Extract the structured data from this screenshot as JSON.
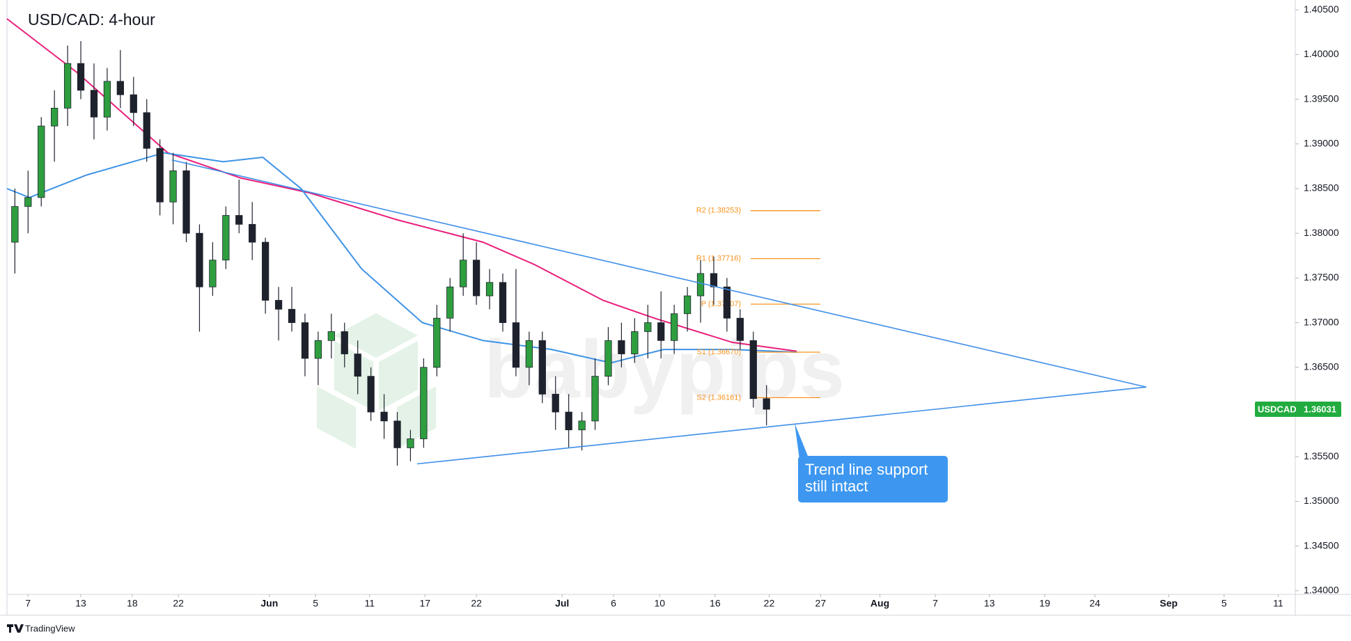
{
  "chart_data": {
    "type": "candlestick",
    "title": "USD/CAD: 4-hour",
    "x": [
      -1,
      0,
      1,
      2,
      3,
      4,
      5,
      6,
      7,
      8,
      9,
      10,
      11,
      12,
      13,
      14,
      15,
      16,
      17,
      18,
      19,
      20,
      21,
      22,
      23,
      24,
      25,
      26,
      27,
      28,
      29,
      30,
      31,
      32,
      33,
      34,
      35,
      36,
      37,
      38,
      39,
      40,
      41,
      42,
      43,
      44,
      45,
      46,
      47,
      48,
      49,
      50,
      51,
      52,
      53,
      54,
      55,
      56
    ],
    "open": [
      1.379,
      1.383,
      1.384,
      1.392,
      1.394,
      1.399,
      1.396,
      1.393,
      1.397,
      1.3955,
      1.3935,
      1.3895,
      1.3835,
      1.387,
      1.38,
      1.374,
      1.377,
      1.382,
      1.381,
      1.379,
      1.3725,
      1.3715,
      1.37,
      1.366,
      1.368,
      1.369,
      1.3665,
      1.364,
      1.36,
      1.359,
      1.356,
      1.357,
      1.365,
      1.3705,
      1.374,
      1.377,
      1.373,
      1.3745,
      1.37,
      1.365,
      1.368,
      1.362,
      1.36,
      1.358,
      1.359,
      1.364,
      1.368,
      1.3665,
      1.369,
      1.37,
      1.368,
      1.371,
      1.373,
      1.3755,
      1.374,
      1.3705,
      1.368,
      1.3615
    ],
    "high": [
      1.385,
      1.387,
      1.393,
      1.396,
      1.401,
      1.4015,
      1.399,
      1.3985,
      1.4005,
      1.3975,
      1.395,
      1.3905,
      1.389,
      1.388,
      1.381,
      1.379,
      1.383,
      1.386,
      1.3835,
      1.3795,
      1.374,
      1.374,
      1.371,
      1.369,
      1.371,
      1.37,
      1.368,
      1.365,
      1.362,
      1.36,
      1.358,
      1.366,
      1.372,
      1.375,
      1.38,
      1.379,
      1.376,
      1.3755,
      1.376,
      1.369,
      1.369,
      1.364,
      1.362,
      1.36,
      1.366,
      1.3695,
      1.37,
      1.3705,
      1.372,
      1.3735,
      1.372,
      1.374,
      1.377,
      1.3774,
      1.375,
      1.3715,
      1.369,
      1.363
    ],
    "low": [
      1.3755,
      1.38,
      1.383,
      1.388,
      1.392,
      1.395,
      1.3905,
      1.3915,
      1.394,
      1.392,
      1.388,
      1.382,
      1.381,
      1.379,
      1.369,
      1.373,
      1.376,
      1.38,
      1.377,
      1.371,
      1.368,
      1.369,
      1.364,
      1.363,
      1.366,
      1.365,
      1.362,
      1.359,
      1.357,
      1.354,
      1.3545,
      1.356,
      1.364,
      1.369,
      1.373,
      1.372,
      1.3715,
      1.369,
      1.364,
      1.363,
      1.361,
      1.358,
      1.356,
      1.3557,
      1.358,
      1.363,
      1.365,
      1.3655,
      1.366,
      1.366,
      1.3665,
      1.369,
      1.37,
      1.372,
      1.369,
      1.367,
      1.3605,
      1.3585
    ],
    "close": [
      1.383,
      1.384,
      1.392,
      1.394,
      1.399,
      1.396,
      1.393,
      1.397,
      1.3955,
      1.3935,
      1.3895,
      1.3835,
      1.387,
      1.38,
      1.374,
      1.377,
      1.382,
      1.381,
      1.379,
      1.3725,
      1.3715,
      1.37,
      1.366,
      1.368,
      1.369,
      1.3665,
      1.364,
      1.36,
      1.359,
      1.356,
      1.357,
      1.365,
      1.3705,
      1.374,
      1.377,
      1.373,
      1.3745,
      1.37,
      1.365,
      1.368,
      1.362,
      1.36,
      1.358,
      1.359,
      1.364,
      1.368,
      1.3665,
      1.369,
      1.37,
      1.368,
      1.371,
      1.373,
      1.3755,
      1.374,
      1.3705,
      1.368,
      1.3615,
      1.36031
    ],
    "up_color": "#2e9e3f",
    "down_color": "#1e222d",
    "xlim": [
      -1.6,
      96.1
    ],
    "xticks": [
      {
        "value": 0,
        "label": "7"
      },
      {
        "value": 4,
        "label": "13"
      },
      {
        "value": 7.9,
        "label": "18"
      },
      {
        "value": 11.4,
        "label": "22"
      },
      {
        "value": 18.3,
        "label": "Jun"
      },
      {
        "value": 21.8,
        "label": "5"
      },
      {
        "value": 25.9,
        "label": "11"
      },
      {
        "value": 30.1,
        "label": "17"
      },
      {
        "value": 34,
        "label": "22"
      },
      {
        "value": 40.5,
        "label": "Jul"
      },
      {
        "value": 44.4,
        "label": "6"
      },
      {
        "value": 47.9,
        "label": "10"
      },
      {
        "value": 52.1,
        "label": "16"
      },
      {
        "value": 56.2,
        "label": "22"
      },
      {
        "value": 60.1,
        "label": "27"
      },
      {
        "value": 64.6,
        "label": "Aug"
      },
      {
        "value": 68.8,
        "label": "7"
      },
      {
        "value": 72.9,
        "label": "13"
      },
      {
        "value": 77.1,
        "label": "19"
      },
      {
        "value": 80.9,
        "label": "24"
      },
      {
        "value": 86.5,
        "label": "Sep"
      },
      {
        "value": 90.7,
        "label": "5"
      },
      {
        "value": 94.8,
        "label": "11"
      }
    ],
    "ylim": [
      1.3396,
      1.4061
    ],
    "yticks": [
      {
        "value": 1.34,
        "label": "1.34000"
      },
      {
        "value": 1.345,
        "label": "1.34500"
      },
      {
        "value": 1.35,
        "label": "1.35000"
      },
      {
        "value": 1.355,
        "label": "1.35500"
      },
      {
        "value": 1.36,
        "label": "1.36000"
      },
      {
        "value": 1.365,
        "label": "1.36500"
      },
      {
        "value": 1.37,
        "label": "1.37000"
      },
      {
        "value": 1.375,
        "label": "1.37500"
      },
      {
        "value": 1.38,
        "label": "1.38000"
      },
      {
        "value": 1.385,
        "label": "1.38500"
      },
      {
        "value": 1.39,
        "label": "1.39000"
      },
      {
        "value": 1.395,
        "label": "1.39500"
      },
      {
        "value": 1.4,
        "label": "1.40000"
      },
      {
        "value": 1.405,
        "label": "1.40500"
      }
    ],
    "moving_averages": [
      {
        "color": "#e91e7a",
        "x": [
          -1.6,
          3.7,
          10.6,
          16.1,
          21.4,
          28,
          34.5,
          38.4,
          43.6,
          47.5,
          53.4,
          58.3
        ],
        "values": [
          1.404,
          1.398,
          1.389,
          1.3862,
          1.3845,
          1.3815,
          1.379,
          1.3765,
          1.3725,
          1.3705,
          1.3678,
          1.3668
        ]
      },
      {
        "color": "#3d93e6",
        "x": [
          -1.6,
          0.1,
          4.4,
          10.3,
          14.8,
          17.8,
          20.7,
          25.3,
          29.9,
          34.5,
          39.7,
          44.2,
          48.2,
          53.4,
          58.3
        ],
        "values": [
          1.385,
          1.384,
          1.3865,
          1.389,
          1.388,
          1.3885,
          1.385,
          1.376,
          1.37,
          1.368,
          1.367,
          1.3655,
          1.367,
          1.367,
          1.3667
        ]
      }
    ],
    "trendlines": [
      {
        "color": "#3d8ee8",
        "x": [
          10.9,
          84.8
        ],
        "values": [
          1.3882,
          1.3628
        ]
      },
      {
        "color": "#3d8ee8",
        "x": [
          29.5,
          84.8
        ],
        "values": [
          1.3542,
          1.3628
        ]
      }
    ],
    "pivot_color": "#f7931e",
    "pivots": [
      {
        "label": "R2 (1.38253)",
        "value": 1.38253
      },
      {
        "label": "R1 (1.37716)",
        "value": 1.37716
      },
      {
        "label": "P (1.37207)",
        "value": 1.37207
      },
      {
        "label": "S1 (1.36670)",
        "value": 1.3667
      },
      {
        "label": "S2 (1.36161)",
        "value": 1.36161
      }
    ],
    "price_tag": {
      "symbol": "USDCAD",
      "value": 1.36031,
      "color": "#22ab3f"
    },
    "annotation": {
      "lines": [
        "Trend line support",
        "still intact"
      ],
      "color": "#3d97f0"
    },
    "watermark": "babypips",
    "footer": "TradingView"
  }
}
